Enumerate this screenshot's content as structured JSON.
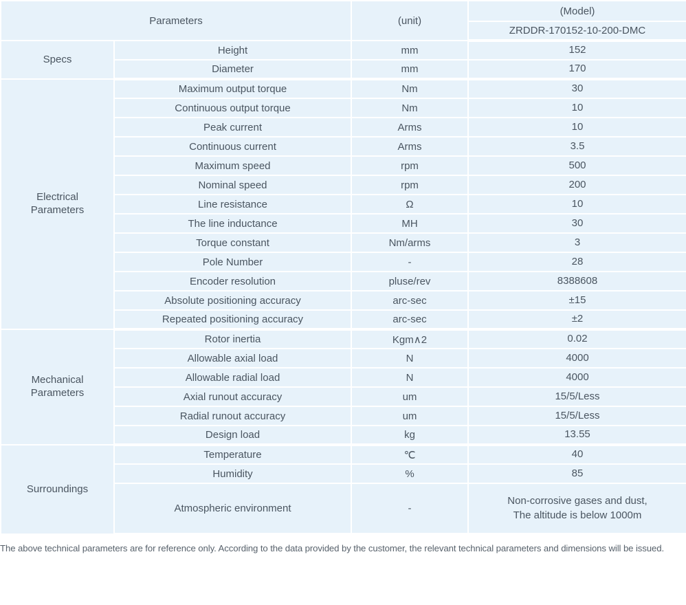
{
  "table": {
    "header": {
      "parameters_label": "Parameters",
      "unit_label": "(unit)",
      "model_label": "(Model)",
      "model_number": "ZRDDR-170152-10-200-DMC"
    },
    "groups": [
      {
        "name": "Specs",
        "rows": [
          {
            "parameter": "Height",
            "unit": "mm",
            "value": "152"
          },
          {
            "parameter": "Diameter",
            "unit": "mm",
            "value": "170"
          }
        ]
      },
      {
        "name": "Electrical\nParameters",
        "rows": [
          {
            "parameter": "Maximum output torque",
            "unit": "Nm",
            "value": "30"
          },
          {
            "parameter": "Continuous output torque",
            "unit": "Nm",
            "value": "10"
          },
          {
            "parameter": "Peak current",
            "unit": "Arms",
            "value": "10"
          },
          {
            "parameter": "Continuous current",
            "unit": "Arms",
            "value": "3.5"
          },
          {
            "parameter": "Maximum speed",
            "unit": "rpm",
            "value": "500"
          },
          {
            "parameter": "Nominal speed",
            "unit": "rpm",
            "value": "200"
          },
          {
            "parameter": "Line resistance",
            "unit": "Ω",
            "value": "10"
          },
          {
            "parameter": "The line inductance",
            "unit": "MH",
            "value": "30"
          },
          {
            "parameter": "Torque constant",
            "unit": "Nm/arms",
            "value": "3"
          },
          {
            "parameter": "Pole Number",
            "unit": "-",
            "value": "28"
          },
          {
            "parameter": "Encoder resolution",
            "unit": "pluse/rev",
            "value": "8388608"
          },
          {
            "parameter": "Absolute positioning accuracy",
            "unit": "arc-sec",
            "value": "±15"
          },
          {
            "parameter": "Repeated positioning accuracy",
            "unit": "arc-sec",
            "value": "±2"
          }
        ]
      },
      {
        "name": "Mechanical\nParameters",
        "rows": [
          {
            "parameter": "Rotor inertia",
            "unit": "Kgm∧2",
            "value": "0.02"
          },
          {
            "parameter": "Allowable axial load",
            "unit": "N",
            "value": "4000"
          },
          {
            "parameter": "Allowable radial load",
            "unit": "N",
            "value": "4000"
          },
          {
            "parameter": "Axial runout accuracy",
            "unit": "um",
            "value": "15/5/Less"
          },
          {
            "parameter": "Radial runout accuracy",
            "unit": "um",
            "value": "15/5/Less"
          },
          {
            "parameter": "Design load",
            "unit": "kg",
            "value": "13.55"
          }
        ]
      },
      {
        "name": "Surroundings",
        "rows": [
          {
            "parameter": "Temperature",
            "unit": "℃",
            "value": "40"
          },
          {
            "parameter": "Humidity",
            "unit": "%",
            "value": "85"
          },
          {
            "parameter": "Atmospheric environment",
            "unit": "-",
            "value": "Non-corrosive gases and dust,\nThe altitude is below 1000m",
            "tall": true
          }
        ]
      }
    ]
  },
  "footer_note": "The above technical parameters are for reference only. According to the data provided by the customer, the relevant technical parameters and dimensions will be issued.",
  "colors": {
    "header_bg": "#cbd7e7",
    "row_bg": "#e7f2fa",
    "separator": "#ffffff",
    "text": "#4a5560",
    "footer_text": "#57616b"
  }
}
